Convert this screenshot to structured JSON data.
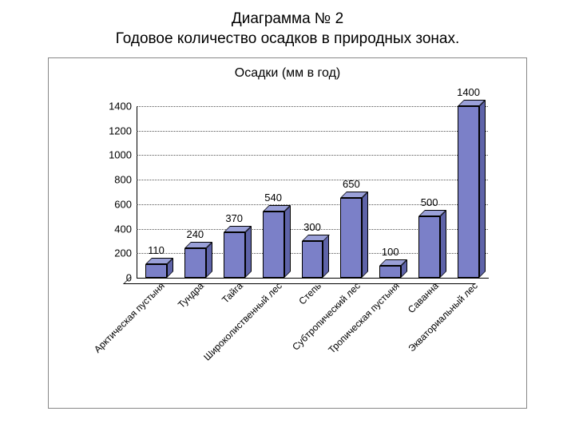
{
  "title_line1": "Диаграмма № 2",
  "title_line2": "Годовое количество осадков в природных зонах.",
  "chart": {
    "type": "bar",
    "chart_title": "Осадки (мм в год)",
    "ymin": 0,
    "ymax": 1400,
    "ytick_step": 200,
    "yticks": [
      0,
      200,
      400,
      600,
      800,
      1000,
      1200,
      1400
    ],
    "bar_color_front": "#7b80c8",
    "bar_color_top": "#9aa0d8",
    "bar_color_side": "#5e63a8",
    "background_color": "#ffffff",
    "grid_color": "#555555",
    "label_fontsize": 13,
    "categories": [
      "Арктическая пустыня",
      "Тундра",
      "Тайга",
      "Широколиственный лес",
      "Степь",
      "Субтропический лес",
      "Тропическая пустыня",
      "Саванна",
      "Экваториальный лес"
    ],
    "values": [
      110,
      240,
      370,
      540,
      300,
      650,
      100,
      500,
      1400
    ]
  }
}
